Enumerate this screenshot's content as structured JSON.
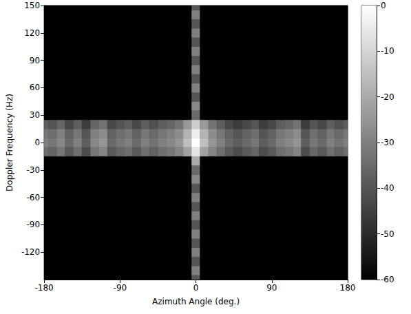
{
  "chart_data": {
    "type": "heatmap",
    "xlabel": "Azimuth Angle (deg.)",
    "ylabel": "Doppler Frequency (Hz)",
    "x": [
      -180,
      -170,
      -160,
      -150,
      -140,
      -130,
      -120,
      -110,
      -100,
      -90,
      -80,
      -70,
      -60,
      -50,
      -40,
      -30,
      -20,
      -10,
      0,
      10,
      20,
      30,
      40,
      50,
      60,
      70,
      80,
      90,
      100,
      110,
      120,
      130,
      140,
      150,
      160,
      170,
      180
    ],
    "y": [
      -150,
      -140,
      -130,
      -120,
      -110,
      -100,
      -90,
      -80,
      -70,
      -60,
      -50,
      -40,
      -30,
      -20,
      -10,
      0,
      10,
      20,
      30,
      40,
      50,
      60,
      70,
      80,
      90,
      100,
      110,
      120,
      130,
      140,
      150
    ],
    "z": [
      [
        -60,
        -60,
        -60,
        -60,
        -60,
        -60,
        -60,
        -60,
        -60,
        -60,
        -60,
        -60,
        -60,
        -60,
        -60,
        -60,
        -60,
        -60,
        -40,
        -60,
        -60,
        -60,
        -60,
        -60,
        -60,
        -60,
        -60,
        -60,
        -60,
        -60,
        -60,
        -60,
        -60,
        -60,
        -60,
        -60,
        -60
      ],
      [
        -60,
        -60,
        -60,
        -60,
        -60,
        -60,
        -60,
        -60,
        -60,
        -60,
        -60,
        -60,
        -60,
        -60,
        -60,
        -60,
        -60,
        -60,
        -30,
        -60,
        -60,
        -60,
        -60,
        -60,
        -60,
        -60,
        -60,
        -60,
        -60,
        -60,
        -60,
        -60,
        -60,
        -60,
        -60,
        -60,
        -60
      ],
      [
        -60,
        -60,
        -60,
        -60,
        -60,
        -60,
        -60,
        -60,
        -60,
        -60,
        -60,
        -60,
        -60,
        -60,
        -60,
        -60,
        -60,
        -60,
        -40,
        -60,
        -60,
        -60,
        -60,
        -60,
        -60,
        -60,
        -60,
        -60,
        -60,
        -60,
        -60,
        -60,
        -60,
        -60,
        -60,
        -60,
        -60
      ],
      [
        -60,
        -60,
        -60,
        -60,
        -60,
        -60,
        -60,
        -60,
        -60,
        -60,
        -60,
        -60,
        -60,
        -60,
        -60,
        -60,
        -60,
        -60,
        -30,
        -60,
        -60,
        -60,
        -60,
        -60,
        -60,
        -60,
        -60,
        -60,
        -60,
        -60,
        -60,
        -60,
        -60,
        -60,
        -60,
        -60,
        -60
      ],
      [
        -60,
        -60,
        -60,
        -60,
        -60,
        -60,
        -60,
        -60,
        -60,
        -60,
        -60,
        -60,
        -60,
        -60,
        -60,
        -60,
        -60,
        -60,
        -40,
        -60,
        -60,
        -60,
        -60,
        -60,
        -60,
        -60,
        -60,
        -60,
        -60,
        -60,
        -60,
        -60,
        -60,
        -60,
        -60,
        -60,
        -60
      ],
      [
        -60,
        -60,
        -60,
        -60,
        -60,
        -60,
        -60,
        -60,
        -60,
        -60,
        -60,
        -60,
        -60,
        -60,
        -60,
        -60,
        -60,
        -60,
        -30,
        -60,
        -60,
        -60,
        -60,
        -60,
        -60,
        -60,
        -60,
        -60,
        -60,
        -60,
        -60,
        -60,
        -60,
        -60,
        -60,
        -60,
        -60
      ],
      [
        -60,
        -60,
        -60,
        -60,
        -60,
        -60,
        -60,
        -60,
        -60,
        -60,
        -60,
        -60,
        -60,
        -60,
        -60,
        -60,
        -60,
        -60,
        -40,
        -60,
        -60,
        -60,
        -60,
        -60,
        -60,
        -60,
        -60,
        -60,
        -60,
        -60,
        -60,
        -60,
        -60,
        -60,
        -60,
        -60,
        -60
      ],
      [
        -60,
        -60,
        -60,
        -60,
        -60,
        -60,
        -60,
        -60,
        -60,
        -60,
        -60,
        -60,
        -60,
        -60,
        -60,
        -60,
        -60,
        -60,
        -30,
        -60,
        -60,
        -60,
        -60,
        -60,
        -60,
        -60,
        -60,
        -60,
        -60,
        -60,
        -60,
        -60,
        -60,
        -60,
        -60,
        -60,
        -60
      ],
      [
        -60,
        -60,
        -60,
        -60,
        -60,
        -60,
        -60,
        -60,
        -60,
        -60,
        -60,
        -60,
        -60,
        -60,
        -60,
        -60,
        -60,
        -60,
        -40,
        -60,
        -60,
        -60,
        -60,
        -60,
        -60,
        -60,
        -60,
        -60,
        -60,
        -60,
        -60,
        -60,
        -60,
        -60,
        -60,
        -60,
        -60
      ],
      [
        -60,
        -60,
        -60,
        -60,
        -60,
        -60,
        -60,
        -60,
        -60,
        -60,
        -60,
        -60,
        -60,
        -60,
        -60,
        -60,
        -60,
        -60,
        -30,
        -60,
        -60,
        -60,
        -60,
        -60,
        -60,
        -60,
        -60,
        -60,
        -60,
        -60,
        -60,
        -60,
        -60,
        -60,
        -60,
        -60,
        -60
      ],
      [
        -60,
        -60,
        -60,
        -60,
        -60,
        -60,
        -60,
        -60,
        -60,
        -60,
        -60,
        -60,
        -60,
        -60,
        -60,
        -60,
        -60,
        -60,
        -40,
        -60,
        -60,
        -60,
        -60,
        -60,
        -60,
        -60,
        -60,
        -60,
        -60,
        -60,
        -60,
        -60,
        -60,
        -60,
        -60,
        -60,
        -60
      ],
      [
        -60,
        -60,
        -60,
        -60,
        -60,
        -60,
        -60,
        -60,
        -60,
        -60,
        -60,
        -60,
        -60,
        -60,
        -60,
        -60,
        -60,
        -60,
        -28,
        -60,
        -60,
        -60,
        -60,
        -60,
        -60,
        -60,
        -60,
        -60,
        -60,
        -60,
        -60,
        -60,
        -60,
        -60,
        -60,
        -60,
        -60
      ],
      [
        -60,
        -60,
        -60,
        -60,
        -60,
        -60,
        -60,
        -60,
        -60,
        -60,
        -60,
        -60,
        -60,
        -60,
        -60,
        -60,
        -60,
        -60,
        -35,
        -60,
        -60,
        -60,
        -60,
        -60,
        -60,
        -60,
        -60,
        -60,
        -60,
        -60,
        -60,
        -60,
        -60,
        -60,
        -60,
        -60,
        -60
      ],
      [
        -60,
        -60,
        -60,
        -60,
        -60,
        -60,
        -60,
        -60,
        -60,
        -60,
        -60,
        -60,
        -60,
        -60,
        -60,
        -60,
        -60,
        -60,
        -20,
        -60,
        -60,
        -60,
        -60,
        -60,
        -60,
        -60,
        -60,
        -60,
        -60,
        -60,
        -60,
        -60,
        -60,
        -60,
        -60,
        -60,
        -60
      ],
      [
        -34,
        -36,
        -32,
        -39,
        -34,
        -42,
        -32,
        -29,
        -39,
        -36,
        -34,
        -39,
        -34,
        -37,
        -34,
        -32,
        -29,
        -22,
        -6,
        -22,
        -29,
        -34,
        -39,
        -42,
        -39,
        -36,
        -42,
        -39,
        -34,
        -32,
        -29,
        -42,
        -36,
        -39,
        -34,
        -37,
        -34
      ],
      [
        -30,
        -32,
        -28,
        -35,
        -30,
        -38,
        -28,
        -25,
        -35,
        -32,
        -30,
        -35,
        -30,
        -33,
        -30,
        -28,
        -25,
        -15,
        0,
        -15,
        -25,
        -30,
        -35,
        -38,
        -35,
        -32,
        -38,
        -35,
        -30,
        -28,
        -25,
        -38,
        -32,
        -35,
        -30,
        -33,
        -30
      ],
      [
        -32,
        -34,
        -30,
        -37,
        -32,
        -40,
        -30,
        -27,
        -37,
        -34,
        -32,
        -37,
        -32,
        -35,
        -32,
        -30,
        -27,
        -18,
        -4,
        -18,
        -27,
        -32,
        -37,
        -40,
        -37,
        -34,
        -40,
        -37,
        -32,
        -30,
        -27,
        -40,
        -34,
        -37,
        -32,
        -35,
        -32
      ],
      [
        -38,
        -40,
        -36,
        -43,
        -38,
        -46,
        -36,
        -33,
        -43,
        -40,
        -38,
        -43,
        -38,
        -41,
        -38,
        -36,
        -33,
        -24,
        -12,
        -24,
        -33,
        -38,
        -43,
        -46,
        -43,
        -40,
        -46,
        -43,
        -38,
        -36,
        -33,
        -46,
        -40,
        -43,
        -38,
        -41,
        -38
      ],
      [
        -60,
        -60,
        -60,
        -60,
        -60,
        -60,
        -60,
        -60,
        -60,
        -60,
        -60,
        -60,
        -60,
        -60,
        -60,
        -60,
        -60,
        -60,
        -35,
        -60,
        -60,
        -60,
        -60,
        -60,
        -60,
        -60,
        -60,
        -60,
        -60,
        -60,
        -60,
        -60,
        -60,
        -60,
        -60,
        -60,
        -60
      ],
      [
        -60,
        -60,
        -60,
        -60,
        -60,
        -60,
        -60,
        -60,
        -60,
        -60,
        -60,
        -60,
        -60,
        -60,
        -60,
        -60,
        -60,
        -60,
        -28,
        -60,
        -60,
        -60,
        -60,
        -60,
        -60,
        -60,
        -60,
        -60,
        -60,
        -60,
        -60,
        -60,
        -60,
        -60,
        -60,
        -60,
        -60
      ],
      [
        -60,
        -60,
        -60,
        -60,
        -60,
        -60,
        -60,
        -60,
        -60,
        -60,
        -60,
        -60,
        -60,
        -60,
        -60,
        -60,
        -60,
        -60,
        -40,
        -60,
        -60,
        -60,
        -60,
        -60,
        -60,
        -60,
        -60,
        -60,
        -60,
        -60,
        -60,
        -60,
        -60,
        -60,
        -60,
        -60,
        -60
      ],
      [
        -60,
        -60,
        -60,
        -60,
        -60,
        -60,
        -60,
        -60,
        -60,
        -60,
        -60,
        -60,
        -60,
        -60,
        -60,
        -60,
        -60,
        -60,
        -30,
        -60,
        -60,
        -60,
        -60,
        -60,
        -60,
        -60,
        -60,
        -60,
        -60,
        -60,
        -60,
        -60,
        -60,
        -60,
        -60,
        -60,
        -60
      ],
      [
        -60,
        -60,
        -60,
        -60,
        -60,
        -60,
        -60,
        -60,
        -60,
        -60,
        -60,
        -60,
        -60,
        -60,
        -60,
        -60,
        -60,
        -60,
        -40,
        -60,
        -60,
        -60,
        -60,
        -60,
        -60,
        -60,
        -60,
        -60,
        -60,
        -60,
        -60,
        -60,
        -60,
        -60,
        -60,
        -60,
        -60
      ],
      [
        -60,
        -60,
        -60,
        -60,
        -60,
        -60,
        -60,
        -60,
        -60,
        -60,
        -60,
        -60,
        -60,
        -60,
        -60,
        -60,
        -60,
        -60,
        -30,
        -60,
        -60,
        -60,
        -60,
        -60,
        -60,
        -60,
        -60,
        -60,
        -60,
        -60,
        -60,
        -60,
        -60,
        -60,
        -60,
        -60,
        -60
      ],
      [
        -60,
        -60,
        -60,
        -60,
        -60,
        -60,
        -60,
        -60,
        -60,
        -60,
        -60,
        -60,
        -60,
        -60,
        -60,
        -60,
        -60,
        -60,
        -40,
        -60,
        -60,
        -60,
        -60,
        -60,
        -60,
        -60,
        -60,
        -60,
        -60,
        -60,
        -60,
        -60,
        -60,
        -60,
        -60,
        -60,
        -60
      ],
      [
        -60,
        -60,
        -60,
        -60,
        -60,
        -60,
        -60,
        -60,
        -60,
        -60,
        -60,
        -60,
        -60,
        -60,
        -60,
        -60,
        -60,
        -60,
        -30,
        -60,
        -60,
        -60,
        -60,
        -60,
        -60,
        -60,
        -60,
        -60,
        -60,
        -60,
        -60,
        -60,
        -60,
        -60,
        -60,
        -60,
        -60
      ],
      [
        -60,
        -60,
        -60,
        -60,
        -60,
        -60,
        -60,
        -60,
        -60,
        -60,
        -60,
        -60,
        -60,
        -60,
        -60,
        -60,
        -60,
        -60,
        -40,
        -60,
        -60,
        -60,
        -60,
        -60,
        -60,
        -60,
        -60,
        -60,
        -60,
        -60,
        -60,
        -60,
        -60,
        -60,
        -60,
        -60,
        -60
      ],
      [
        -60,
        -60,
        -60,
        -60,
        -60,
        -60,
        -60,
        -60,
        -60,
        -60,
        -60,
        -60,
        -60,
        -60,
        -60,
        -60,
        -60,
        -60,
        -30,
        -60,
        -60,
        -60,
        -60,
        -60,
        -60,
        -60,
        -60,
        -60,
        -60,
        -60,
        -60,
        -60,
        -60,
        -60,
        -60,
        -60,
        -60
      ],
      [
        -60,
        -60,
        -60,
        -60,
        -60,
        -60,
        -60,
        -60,
        -60,
        -60,
        -60,
        -60,
        -60,
        -60,
        -60,
        -60,
        -60,
        -60,
        -40,
        -60,
        -60,
        -60,
        -60,
        -60,
        -60,
        -60,
        -60,
        -60,
        -60,
        -60,
        -60,
        -60,
        -60,
        -60,
        -60,
        -60,
        -60
      ],
      [
        -60,
        -60,
        -60,
        -60,
        -60,
        -60,
        -60,
        -60,
        -60,
        -60,
        -60,
        -60,
        -60,
        -60,
        -60,
        -60,
        -60,
        -60,
        -30,
        -60,
        -60,
        -60,
        -60,
        -60,
        -60,
        -60,
        -60,
        -60,
        -60,
        -60,
        -60,
        -60,
        -60,
        -60,
        -60,
        -60,
        -60
      ],
      [
        -60,
        -60,
        -60,
        -60,
        -60,
        -60,
        -60,
        -60,
        -60,
        -60,
        -60,
        -60,
        -60,
        -60,
        -60,
        -60,
        -60,
        -60,
        -40,
        -60,
        -60,
        -60,
        -60,
        -60,
        -60,
        -60,
        -60,
        -60,
        -60,
        -60,
        -60,
        -60,
        -60,
        -60,
        -60,
        -60,
        -60
      ]
    ],
    "xlim": [
      -180,
      180
    ],
    "xticks": [
      -180,
      -90,
      0,
      90,
      180
    ],
    "ylim": [
      -150,
      150
    ],
    "yticks": [
      -120,
      -90,
      -60,
      -30,
      0,
      30,
      60,
      90,
      120,
      150
    ],
    "colorbar_range": [
      -60,
      0
    ],
    "colorbar_ticks": [
      -60,
      -50,
      -40,
      -30,
      -20,
      -10,
      0
    ]
  }
}
